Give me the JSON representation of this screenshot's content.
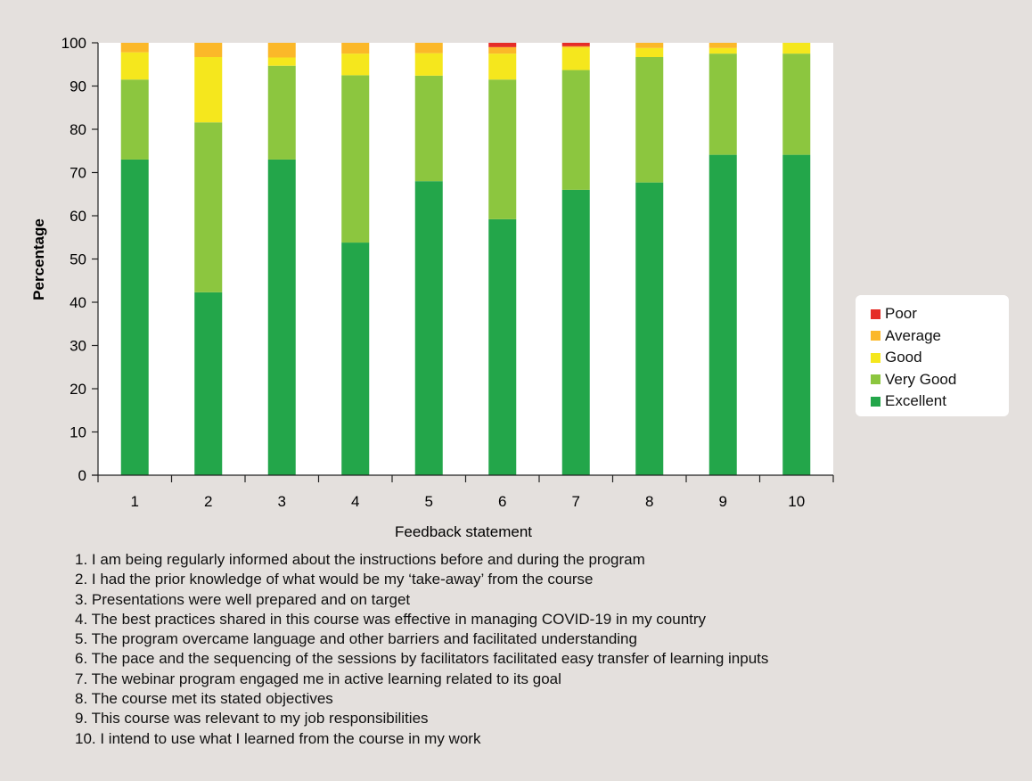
{
  "chart_data": {
    "type": "bar",
    "stacked": true,
    "xlabel": "Feedback statement",
    "ylabel": "Percentage",
    "ylim": [
      0,
      100
    ],
    "yticks": [
      0,
      10,
      20,
      30,
      40,
      50,
      60,
      70,
      80,
      90,
      100
    ],
    "grid": false,
    "legend_position": "right",
    "categories": [
      "1",
      "2",
      "3",
      "4",
      "5",
      "6",
      "7",
      "8",
      "9",
      "10"
    ],
    "series": [
      {
        "name": "Excellent",
        "color": "#23a64a",
        "values": [
          73,
          42.3,
          73,
          53.8,
          68,
          59.2,
          66,
          67.7,
          74.1,
          74.1
        ]
      },
      {
        "name": "Very Good",
        "color": "#8cc63f",
        "values": [
          18.5,
          39.3,
          21.7,
          38.7,
          24.4,
          32.3,
          27.7,
          29,
          23.4,
          23.4
        ]
      },
      {
        "name": "Good",
        "color": "#f5e71d",
        "values": [
          6.3,
          15.1,
          1.9,
          5.0,
          5.2,
          6.0,
          5.2,
          2.1,
          1.3,
          2.5
        ]
      },
      {
        "name": "Average",
        "color": "#fbb829",
        "values": [
          2.2,
          3.3,
          3.4,
          2.5,
          2.4,
          1.5,
          0.3,
          1.2,
          1.2,
          0
        ]
      },
      {
        "name": "Poor",
        "color": "#e52d27",
        "values": [
          0,
          0,
          0,
          0,
          0,
          1.0,
          0.8,
          0,
          0,
          0
        ]
      }
    ],
    "legend_order": [
      "Poor",
      "Average",
      "Good",
      "Very Good",
      "Excellent"
    ],
    "statements": [
      "1. I am being regularly informed about the instructions before and during the program",
      "2. I had the prior knowledge of what would be my ‘take-away’ from the course",
      "3. Presentations were well prepared and on target",
      "4. The best practices shared in this course was effective in managing COVID-19 in my country",
      "5. The program overcame language and other barriers and facilitated understanding",
      "6. The pace and the sequencing of the sessions by facilitators facilitated easy transfer of learning inputs",
      "7. The webinar program engaged me in active learning related to its goal",
      "8. The course met its stated objectives",
      "9. This course was relevant to my job responsibilities",
      "10. I intend to use what I learned from the course in my work"
    ]
  }
}
